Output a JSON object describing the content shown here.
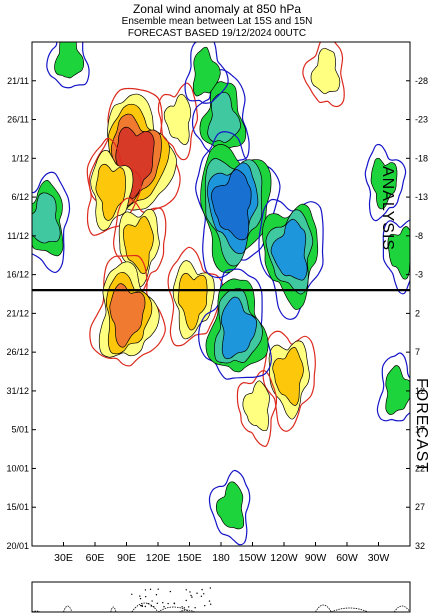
{
  "header": {
    "title": "Zonal wind anomaly at 850 hPa",
    "subtitle": "Ensemble mean between  Lat 15S and 15N",
    "forecast_line": "FORECAST  BASED 19/12/2024 00UTC"
  },
  "sections": {
    "analysis": "ANALYSIS",
    "forecast": "FORECAST"
  },
  "chart_data": {
    "type": "heatmap",
    "title": "Zonal wind anomaly at 850 hPa",
    "subtitle": "Ensemble mean between  Lat 15S and 15N",
    "x_ticks": [
      "30E",
      "60E",
      "90E",
      "120E",
      "150E",
      "180",
      "150W",
      "120W",
      "90W",
      "60W",
      "30W"
    ],
    "x_tick_lon": [
      30,
      60,
      90,
      120,
      150,
      180,
      210,
      240,
      270,
      300,
      330
    ],
    "xlim_lon": [
      0,
      360
    ],
    "y_ticks": [
      "21/11",
      "26/11",
      "1/12",
      "6/12",
      "11/12",
      "16/12",
      "21/12",
      "26/12",
      "31/12",
      "5/01",
      "10/01",
      "15/01",
      "20/01"
    ],
    "y_tick_day": [
      -28,
      -23,
      -18,
      -13,
      -8,
      -3,
      2,
      7,
      12,
      17,
      22,
      27,
      32
    ],
    "y_ticks_right": [
      "-28",
      "-23",
      "-18",
      "-13",
      "-8",
      "-3",
      "2",
      "7",
      "12",
      "17",
      "22",
      "27",
      "32"
    ],
    "ylim_day": [
      -33,
      32
    ],
    "split_day": -1,
    "features": [
      {
        "lon": 98,
        "day": -18,
        "value": 9,
        "levels": [
          1,
          3,
          5,
          7,
          9
        ]
      },
      {
        "lon": 75,
        "day": -14,
        "value": 5,
        "levels": [
          1,
          3,
          5
        ]
      },
      {
        "lon": 102,
        "day": -7,
        "value": 5,
        "levels": [
          1,
          3,
          5
        ]
      },
      {
        "lon": 140,
        "day": -23,
        "value": 3,
        "levels": [
          1,
          3
        ]
      },
      {
        "lon": 280,
        "day": -29,
        "value": 3,
        "levels": [
          1,
          3
        ]
      },
      {
        "lon": 90,
        "day": 2,
        "value": 7,
        "levels": [
          1,
          3,
          5,
          7
        ]
      },
      {
        "lon": 153,
        "day": 0,
        "value": 5,
        "levels": [
          1,
          3,
          5
        ]
      },
      {
        "lon": 245,
        "day": 10,
        "value": 5,
        "levels": [
          1,
          3,
          5
        ]
      },
      {
        "lon": 215,
        "day": 14,
        "value": 3,
        "levels": [
          1,
          3
        ]
      },
      {
        "lon": 182,
        "day": -23,
        "value": -5,
        "levels": [
          -1,
          -3,
          -5
        ]
      },
      {
        "lon": 165,
        "day": -29,
        "value": -3,
        "levels": [
          -1,
          -3
        ]
      },
      {
        "lon": 192,
        "day": -12,
        "value": -9,
        "levels": [
          -1,
          -3,
          -5,
          -7,
          -9
        ]
      },
      {
        "lon": 247,
        "day": -6,
        "value": -7,
        "levels": [
          -1,
          -3,
          -5,
          -7
        ]
      },
      {
        "lon": 12,
        "day": -10,
        "value": -5,
        "levels": [
          -1,
          -3,
          -5
        ]
      },
      {
        "lon": 195,
        "day": 4,
        "value": -7,
        "levels": [
          -1,
          -3,
          -5,
          -7
        ]
      },
      {
        "lon": 348,
        "day": 12,
        "value": -3,
        "levels": [
          -1,
          -3
        ]
      },
      {
        "lon": 335,
        "day": -15,
        "value": -3,
        "levels": [
          -1,
          -3
        ]
      },
      {
        "lon": 352,
        "day": -6,
        "value": -3,
        "levels": [
          -1,
          -3
        ]
      },
      {
        "lon": 190,
        "day": 27,
        "value": -3,
        "levels": [
          -1,
          -3
        ]
      },
      {
        "lon": 35,
        "day": -31,
        "value": -3,
        "levels": [
          -1,
          -3
        ]
      }
    ],
    "colors": {
      "pos_fill": [
        "#ffff80",
        "#fdc80c",
        "#f07a30",
        "#d83a28",
        "#c01818"
      ],
      "neg_fill": [
        "#1ed43c",
        "#40c8a0",
        "#1e96dc",
        "#1870d0",
        "#0c40b4"
      ],
      "pos_line": "#dc2a1e",
      "neg_line": "#1414c8"
    },
    "grid": false
  }
}
